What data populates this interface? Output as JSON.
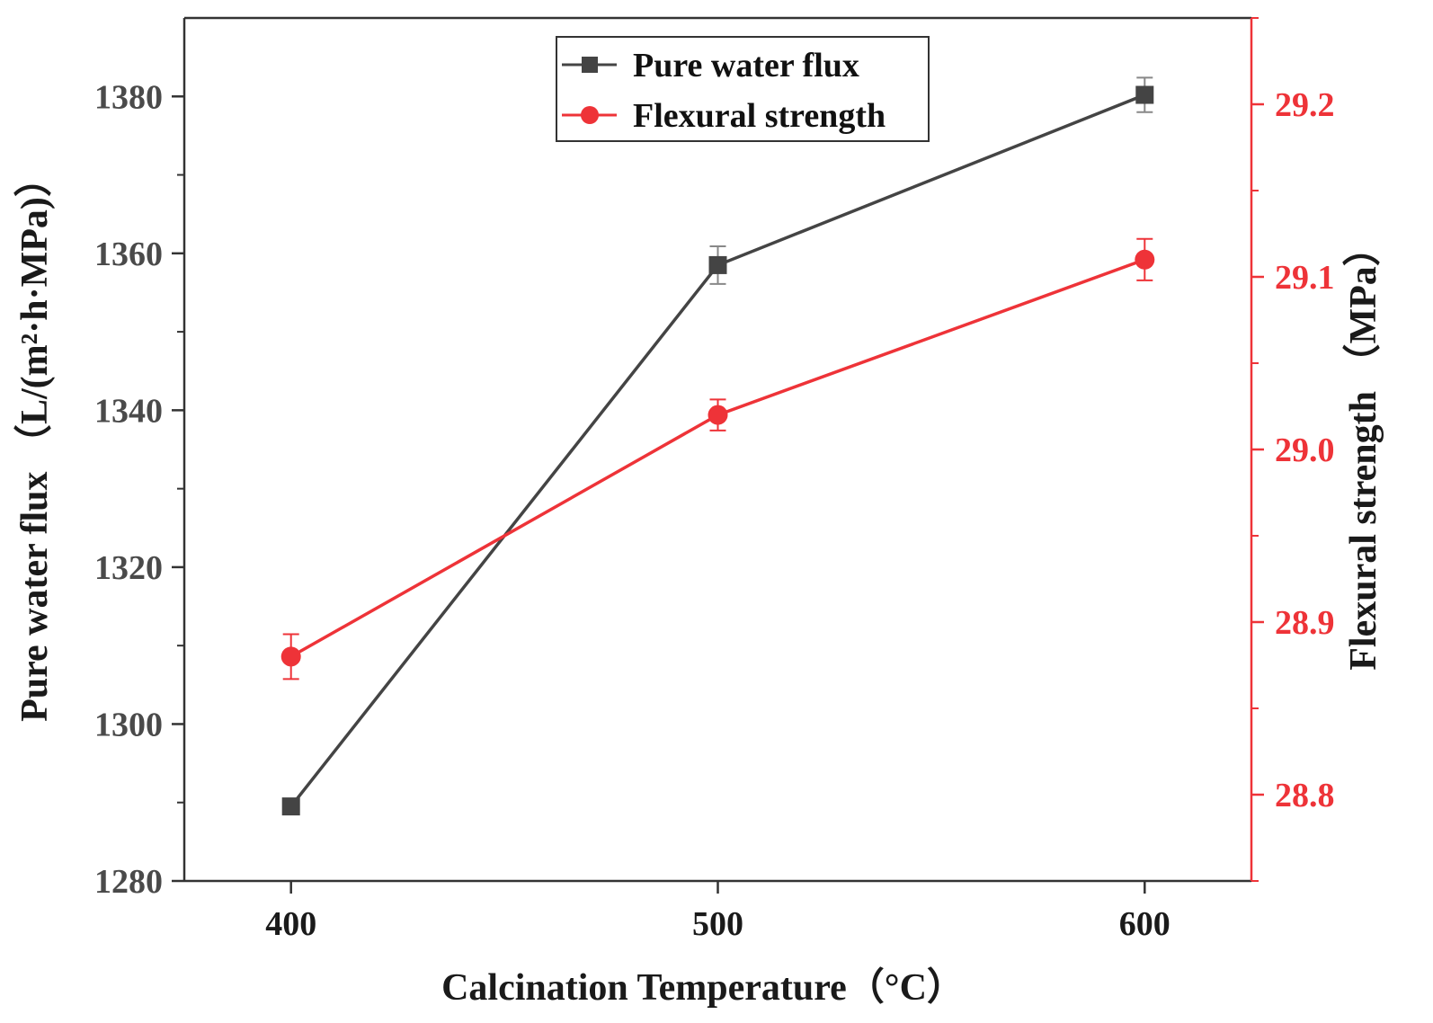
{
  "chart_data": {
    "type": "line",
    "x": [
      400,
      500,
      600
    ],
    "xlabel": "Calcination Temperature（°C）",
    "xlim": [
      375,
      625
    ],
    "x_ticks": [
      "400",
      "500",
      "600"
    ],
    "ylabel_left": "Pure water flux （L/(m²·h·MPa)）",
    "ylim_left": [
      1280,
      1390
    ],
    "y_ticks_left": [
      "1280",
      "1300",
      "1320",
      "1340",
      "1360",
      "1380"
    ],
    "ylabel_right": "Flexural strength （MPa）",
    "ylim_right": [
      28.75,
      29.25
    ],
    "y_ticks_right": [
      "28.8",
      "28.9",
      "29.0",
      "29.1",
      "29.2"
    ],
    "grid": false,
    "legend_position": "top-center",
    "series": [
      {
        "name": "Pure water flux",
        "axis": "left",
        "marker": "square",
        "color": "#444444",
        "values": [
          1289.5,
          1358.5,
          1380.2
        ],
        "errors": [
          0,
          2.4,
          2.2
        ]
      },
      {
        "name": "Flexural strength",
        "axis": "right",
        "marker": "circle",
        "color": "#ee3338",
        "values": [
          28.88,
          29.02,
          29.11
        ],
        "errors": [
          0.013,
          0.009,
          0.012
        ]
      }
    ]
  }
}
